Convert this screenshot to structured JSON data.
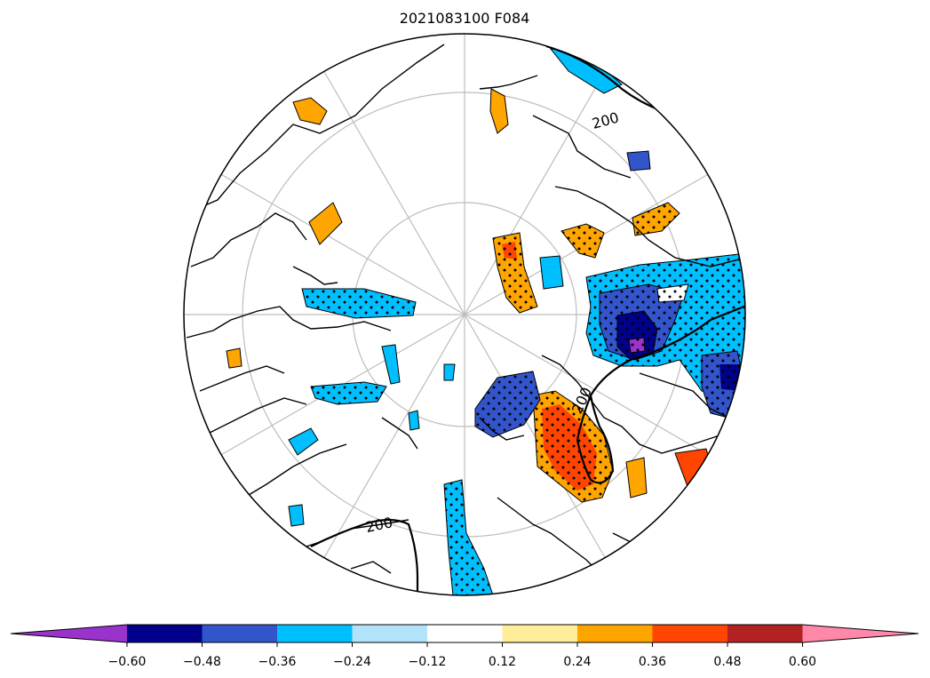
{
  "title": "2021083100 F084",
  "contour_label": "200",
  "colorbar": {
    "tick_labels": [
      "−0.60",
      "−0.48",
      "−0.36",
      "−0.24",
      "−0.12",
      "0.12",
      "0.24",
      "0.36",
      "0.48",
      "0.60"
    ],
    "colors": [
      "#9a33cc",
      "#00008b",
      "#3355cc",
      "#00bfff",
      "#b3e3fa",
      "#ffffff",
      "#ffee99",
      "#ffa500",
      "#ff4500",
      "#b22222",
      "#ff88aa"
    ],
    "extend": "both"
  },
  "legend_colors": {
    "land_line": "#000000",
    "grid_line": "#bdbdbd",
    "stipple": "#000000"
  }
}
